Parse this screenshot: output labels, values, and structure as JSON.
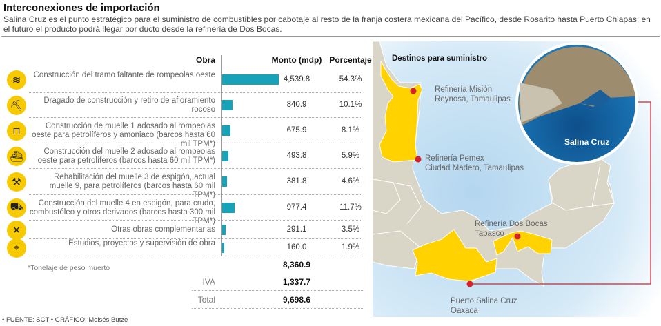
{
  "title": "Interconexiones de importación",
  "subtitle": "Salina Cruz es el punto estratégico para el suministro de combustibles por cabotaje al resto de la franja costera mexicana del Pacífico, desde Rosarito hasta Puerto Chiapas; en el futuro el producto podrá llegar por ducto desde la refinería de Dos Bocas.",
  "colors": {
    "bar": "#17a2b8",
    "icon": "#f7c900",
    "highlight": "#ffd200",
    "marker": "#d6202e",
    "land": "#d9d5c7",
    "sea": "#c2dff2"
  },
  "chart_data": {
    "type": "bar",
    "columns": [
      "Obra",
      "Monto (mdp)",
      "Porcentaje"
    ],
    "rows": [
      {
        "icon": "breakwater-wave-icon",
        "obra": "Construcción del tramo faltante de rompeolas oeste",
        "monto": 4539.8,
        "monto_label": "4,539.8",
        "pct_label": "54.3%"
      },
      {
        "icon": "dredging-icon",
        "obra": "Dragado de construcción y retiro de afloramiento rocoso",
        "monto": 840.9,
        "monto_label": "840.9",
        "pct_label": "10.1%"
      },
      {
        "icon": "pier-icon",
        "obra": "Construcción de muelle 1 adosado al rompeolas oeste para petrolíferos y amoniaco (barcos hasta 60 mil TPM*)",
        "monto": 675.9,
        "monto_label": "675.9",
        "pct_label": "8.1%"
      },
      {
        "icon": "ship-icon",
        "obra": "Construcción del muelle 2 adosado al rompeolas oeste para petrolíferos (barcos hasta 60 mil TPM*)",
        "monto": 493.8,
        "monto_label": "493.8",
        "pct_label": "5.9%"
      },
      {
        "icon": "crane-icon",
        "obra": "Rehabilitación del muelle 3 de espigón, actual muelle 9, para petrolíferos (barcos hasta 60 mil TPM*)",
        "monto": 381.8,
        "monto_label": "381.8",
        "pct_label": "4.6%"
      },
      {
        "icon": "tanker-icon",
        "obra": "Construcción del muelle 4 en espigón, para crudo, combustóleo y otros derivados (barcos hasta 300 mil TPM*)",
        "monto": 977.4,
        "monto_label": "977.4",
        "pct_label": "11.7%"
      },
      {
        "icon": "tools-icon",
        "obra": "Otras obras complementarias",
        "monto": 291.1,
        "monto_label": "291.1",
        "pct_label": "3.5%"
      },
      {
        "icon": "map-study-icon",
        "obra": "Estudios, proyectos y supervisión de obra",
        "monto": 160.0,
        "monto_label": "160.0",
        "pct_label": "1.9%"
      }
    ],
    "subtotal": "8,360.9",
    "iva_label": "IVA",
    "iva": "1,337.7",
    "total_label": "Total",
    "total": "9,698.6",
    "note": "*Tonelaje de peso muerto"
  },
  "map": {
    "title": "Destinos para suministro",
    "inset_label": "Salina Cruz",
    "places": [
      {
        "name": "Refinería Misión",
        "state": "Reynosa, Tamaulipas"
      },
      {
        "name": "Refinería Pemex",
        "state": "Ciudad Madero, Tamaulipas"
      },
      {
        "name": "Refinería Dos Bocas",
        "state": "Tabasco"
      },
      {
        "name": "Puerto Salina Cruz",
        "state": "Oaxaca"
      }
    ]
  },
  "source": "• FUENTE: SCT • GRÁFICO: Moisés Butze"
}
